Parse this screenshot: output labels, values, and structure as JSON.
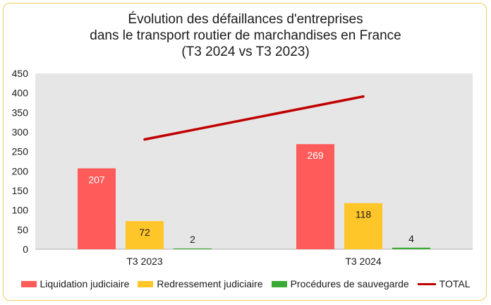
{
  "chart_data": {
    "type": "bar",
    "title_lines": [
      "Évolution des défaillances d'entreprises",
      "dans le transport routier de marchandises en France",
      "(T3 2024 vs T3 2023)"
    ],
    "categories": [
      "T3 2023",
      "T3 2024"
    ],
    "series": [
      {
        "name": "Liquidation judiciaire",
        "values": [
          207,
          269
        ],
        "color": "#ff5b5b",
        "label_color": "#ffffff",
        "label_inside": true
      },
      {
        "name": "Redressement judiciaire",
        "values": [
          72,
          118
        ],
        "color": "#ffc629",
        "label_color": "#1a1a1a",
        "label_inside": true
      },
      {
        "name": "Procédures de sauvegarde",
        "values": [
          2,
          4
        ],
        "color": "#3aaa35",
        "label_color": "#1a1a1a",
        "label_inside": false
      }
    ],
    "line_series": {
      "name": "TOTAL",
      "values": [
        281,
        391
      ],
      "color": "#c00000"
    },
    "ylim": [
      0,
      450
    ],
    "yticks": [
      0,
      50,
      100,
      150,
      200,
      250,
      300,
      350,
      400,
      450
    ],
    "grid": false,
    "legend_position": "bottom",
    "plot_background": "#e6e6e6"
  }
}
